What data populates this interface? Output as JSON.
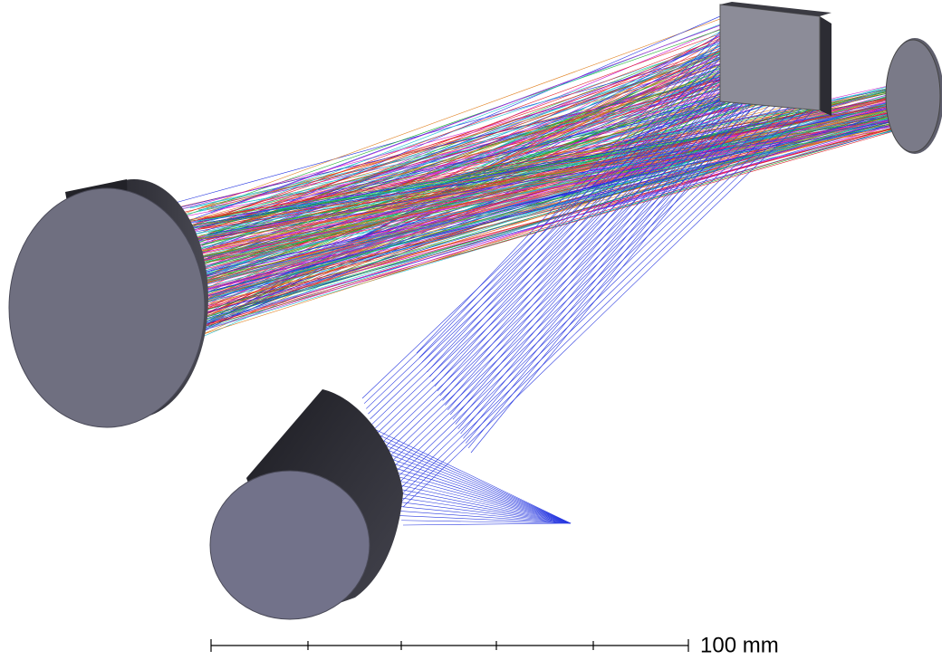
{
  "scale_bar": {
    "label": "100 mm"
  }
}
